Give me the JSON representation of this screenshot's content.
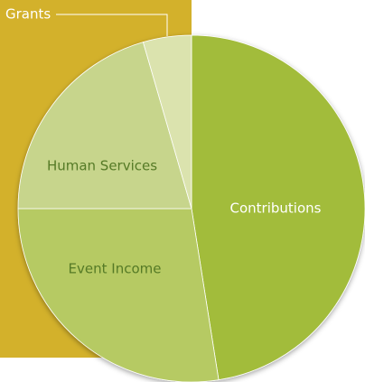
{
  "chart_data": {
    "type": "pie",
    "categories": [
      "Contributions",
      "Event Income",
      "Human Services",
      "Grants"
    ],
    "values": [
      47.5,
      27.5,
      20.5,
      4.5
    ],
    "colors": [
      "#a2bc3b",
      "#b6ca64",
      "#c7d58c",
      "#dbe3ae"
    ],
    "start_angle": 0,
    "direction": "clockwise"
  }
}
